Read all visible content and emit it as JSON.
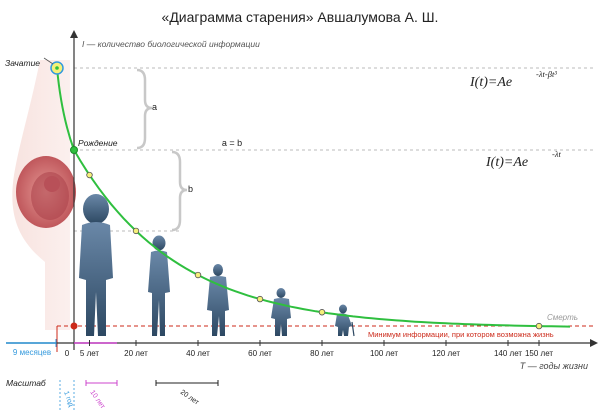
{
  "title": "«Диаграмма старения» Авшалумова А. Ш.",
  "axes": {
    "y_label": "I — количество биологической информации",
    "x_label": "T — годы жизни",
    "origin": "0",
    "prenatal": "9 месяцев"
  },
  "ticks": [
    {
      "age": 5,
      "label": "5 лет"
    },
    {
      "age": 20,
      "label": "20 лет"
    },
    {
      "age": 40,
      "label": "40 лет"
    },
    {
      "age": 60,
      "label": "60 лет"
    },
    {
      "age": 80,
      "label": "80 лет"
    },
    {
      "age": 100,
      "label": "100 лет"
    },
    {
      "age": 120,
      "label": "120 лет"
    },
    {
      "age": 140,
      "label": "140 лет"
    },
    {
      "age": 150,
      "label": "150 лет"
    }
  ],
  "labels": {
    "conception": "Зачатие",
    "birth": "Рождение",
    "death": "Смерть",
    "a": "a",
    "b": "b",
    "a_eq_b": "a = b",
    "minimum": "Минимум информации, при котором возможна жизнь"
  },
  "formulas": {
    "f1_lhs": "I(t)=Ae",
    "f1_exp": "-λt-βt³",
    "f2_lhs": "I(t)=Ae",
    "f2_exp": "-λt"
  },
  "scale": {
    "label": "Масштаб",
    "s1": "1 год",
    "s10": "10 лет",
    "s20": "20 лет"
  },
  "curve_points_age": [
    5,
    20,
    40,
    60,
    80,
    150
  ],
  "colors": {
    "curve": "#2fbf3f",
    "point_fill": "#f5f07a",
    "minimum_line": "#cc2a1a",
    "axis": "#333333",
    "brace": "#c8c8c8",
    "prenatal": "#3399dd",
    "scale10": "#cc44cc",
    "silhouette": "#3d5a78"
  }
}
